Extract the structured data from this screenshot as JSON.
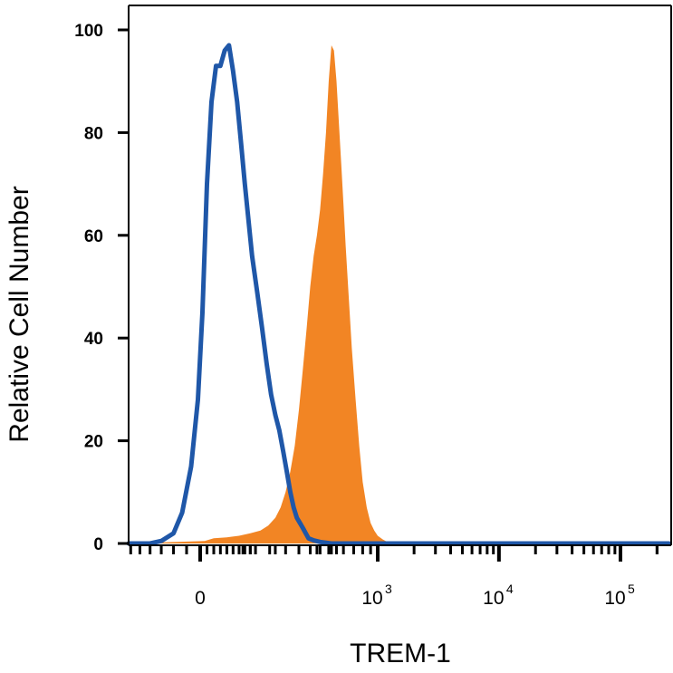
{
  "chart_data": {
    "type": "area",
    "title": "",
    "xlabel": "TREM-1",
    "ylabel": "Relative Cell Number",
    "x_scale": "biexponential",
    "xlim": [
      -300,
      250000
    ],
    "ylim": [
      0,
      100
    ],
    "grid": false,
    "legend": "none",
    "y_ticks": [
      0,
      20,
      40,
      60,
      80,
      100
    ],
    "x_ticks": [
      {
        "value": 0,
        "label": "0",
        "exp": ""
      },
      {
        "value": 1000,
        "label": "10",
        "exp": "3"
      },
      {
        "value": 10000,
        "label": "10",
        "exp": "4"
      },
      {
        "value": 100000,
        "label": "10",
        "exp": "5"
      }
    ],
    "series": [
      {
        "color": "#f28524",
        "style": "filled",
        "x": [
          -300,
          10,
          30,
          60,
          90,
          120,
          150,
          175,
          200,
          220,
          240,
          260,
          280,
          300,
          320,
          340,
          360,
          380,
          400,
          420,
          440,
          460,
          480,
          500,
          520,
          540,
          560,
          580,
          600,
          620,
          650,
          680,
          720,
          760,
          800,
          850,
          900,
          950,
          1000,
          1100,
          1200,
          1400,
          250000
        ],
        "y": [
          0,
          0.5,
          1,
          1.2,
          1.5,
          2,
          2.5,
          3.5,
          5,
          7,
          10,
          14,
          19,
          26,
          34,
          42,
          50,
          56,
          60,
          65,
          72,
          80,
          90,
          97,
          96,
          90,
          82,
          74,
          66,
          58,
          48,
          38,
          28,
          19,
          12,
          7,
          4,
          2.5,
          1.5,
          0.8,
          0.3,
          0,
          0
        ]
      },
      {
        "color": "#1f57a8",
        "style": "line",
        "x": [
          -300,
          -120,
          -90,
          -60,
          -40,
          -20,
          -5,
          5,
          15,
          25,
          35,
          45,
          55,
          65,
          75,
          85,
          95,
          105,
          115,
          125,
          140,
          155,
          170,
          185,
          200,
          215,
          230,
          245,
          260,
          275,
          290,
          305,
          320,
          335,
          350,
          380,
          420,
          500,
          250000
        ],
        "y": [
          0,
          0,
          0.5,
          2,
          6,
          15,
          28,
          45,
          70,
          86,
          93,
          93,
          96,
          97,
          92,
          86,
          78,
          70,
          63,
          56,
          49,
          42,
          35,
          29,
          25,
          22,
          18,
          14,
          10,
          7,
          5,
          4,
          3,
          2,
          1,
          0.6,
          0.3,
          0,
          0
        ]
      }
    ]
  }
}
